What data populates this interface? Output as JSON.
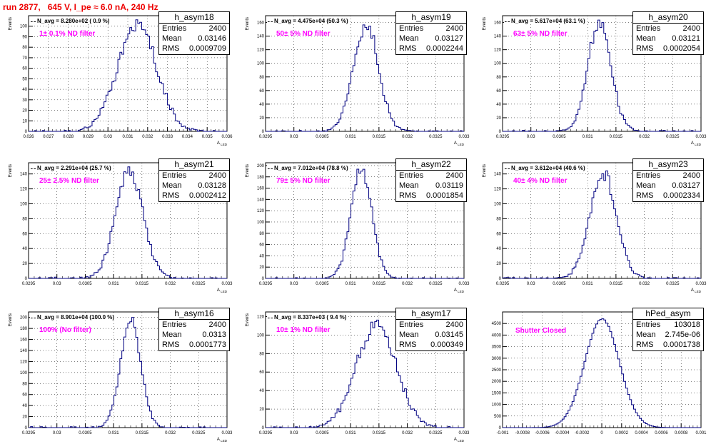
{
  "title": "run 2877,   645 V, I_pe ≈ 6.0 nA, 240 Hz",
  "colors": {
    "title": "#ee0000",
    "histogram": "#000080",
    "filter_label": "#ff00ff",
    "grid": "#000000"
  },
  "chart_data": [
    {
      "type": "histogram",
      "name": "h_asym18",
      "xlabel": "A_{LED}",
      "ylabel": "Events",
      "xlim": [
        0.026,
        0.036
      ],
      "ylim": [
        0,
        110
      ],
      "xticks": [
        "0.026",
        "0.027",
        "0.028",
        "0.029",
        "0.03",
        "0.031",
        "0.032",
        "0.033",
        "0.034",
        "0.035",
        "0.036"
      ],
      "yticks": [
        "0",
        "10",
        "20",
        "30",
        "40",
        "50",
        "60",
        "70",
        "80",
        "90",
        "100"
      ],
      "grid": true,
      "stats": {
        "title": "h_asym18",
        "rows": [
          {
            "label": "Entries",
            "value": "2400"
          },
          {
            "label": "Mean",
            "value": "0.03146"
          },
          {
            "label": "RMS",
            "value": "0.0009709"
          }
        ]
      },
      "n_avg": "N_avg = 8.280e+02 ( 0.9 %)",
      "filter": "1± 0.1% ND filter",
      "dist": {
        "mean": 0.03146,
        "rms": 0.0009709,
        "entries": 2400,
        "peak": 103
      }
    },
    {
      "type": "histogram",
      "name": "h_asym19",
      "xlabel": "A_{LED}",
      "ylabel": "Events",
      "xlim": [
        0.0295,
        0.033
      ],
      "ylim": [
        0,
        170
      ],
      "xticks": [
        "0.0295",
        "0.03",
        "0.0305",
        "0.031",
        "0.0315",
        "0.032",
        "0.0325",
        "0.033"
      ],
      "yticks": [
        "0",
        "20",
        "40",
        "60",
        "80",
        "100",
        "120",
        "140",
        "160"
      ],
      "grid": true,
      "stats": {
        "title": "h_asym19",
        "rows": [
          {
            "label": "Entries",
            "value": "2400"
          },
          {
            "label": "Mean",
            "value": "0.03127"
          },
          {
            "label": "RMS",
            "value": "0.0002244"
          }
        ]
      },
      "n_avg": "N_avg = 4.475e+04 (50.3 %)",
      "filter": "50± 5% ND filter",
      "dist": {
        "mean": 0.03127,
        "rms": 0.0002244,
        "entries": 2400,
        "peak": 157
      }
    },
    {
      "type": "histogram",
      "name": "h_asym20",
      "xlabel": "A_{LED}",
      "ylabel": "Events",
      "xlim": [
        0.0295,
        0.033
      ],
      "ylim": [
        0,
        170
      ],
      "xticks": [
        "0.0295",
        "0.03",
        "0.0305",
        "0.031",
        "0.0315",
        "0.032",
        "0.0325",
        "0.033"
      ],
      "yticks": [
        "0",
        "20",
        "40",
        "60",
        "80",
        "100",
        "120",
        "140",
        "160"
      ],
      "grid": true,
      "stats": {
        "title": "h_asym20",
        "rows": [
          {
            "label": "Entries",
            "value": "2400"
          },
          {
            "label": "Mean",
            "value": "0.03121"
          },
          {
            "label": "RMS",
            "value": "0.0002054"
          }
        ]
      },
      "n_avg": "N_avg = 5.617e+04 (63.1 %)",
      "filter": "63± 5% ND filter",
      "dist": {
        "mean": 0.03121,
        "rms": 0.0002054,
        "entries": 2400,
        "peak": 160
      }
    },
    {
      "type": "histogram",
      "name": "h_asym21",
      "xlabel": "A_{LED}",
      "ylabel": "Events",
      "xlim": [
        0.0295,
        0.033
      ],
      "ylim": [
        0,
        155
      ],
      "xticks": [
        "0.0295",
        "0.03",
        "0.0305",
        "0.031",
        "0.0315",
        "0.032",
        "0.0325",
        "0.033"
      ],
      "yticks": [
        "0",
        "20",
        "40",
        "60",
        "80",
        "100",
        "120",
        "140"
      ],
      "grid": true,
      "stats": {
        "title": "h_asym21",
        "rows": [
          {
            "label": "Entries",
            "value": "2400"
          },
          {
            "label": "Mean",
            "value": "0.03128"
          },
          {
            "label": "RMS",
            "value": "0.0002412"
          }
        ]
      },
      "n_avg": "N_avg = 2.291e+04 (25.7 %)",
      "filter": "25± 2.5% ND filter",
      "dist": {
        "mean": 0.03128,
        "rms": 0.0002412,
        "entries": 2400,
        "peak": 146
      }
    },
    {
      "type": "histogram",
      "name": "h_asym22",
      "xlabel": "A_{LED}",
      "ylabel": "Events",
      "xlim": [
        0.0295,
        0.033
      ],
      "ylim": [
        0,
        205
      ],
      "xticks": [
        "0.0295",
        "0.03",
        "0.0305",
        "0.031",
        "0.0315",
        "0.032",
        "0.0325",
        "0.033"
      ],
      "yticks": [
        "0",
        "20",
        "40",
        "60",
        "80",
        "100",
        "120",
        "140",
        "160",
        "180",
        "200"
      ],
      "grid": true,
      "stats": {
        "title": "h_asym22",
        "rows": [
          {
            "label": "Entries",
            "value": "2400"
          },
          {
            "label": "Mean",
            "value": "0.03119"
          },
          {
            "label": "RMS",
            "value": "0.0001854"
          }
        ]
      },
      "n_avg": "N_avg = 7.012e+04 (78.8 %)",
      "filter": "79± 5% ND filter",
      "dist": {
        "mean": 0.03119,
        "rms": 0.0001854,
        "entries": 2400,
        "peak": 196
      }
    },
    {
      "type": "histogram",
      "name": "h_asym23",
      "xlabel": "A_{LED}",
      "ylabel": "Events",
      "xlim": [
        0.0295,
        0.033
      ],
      "ylim": [
        0,
        155
      ],
      "xticks": [
        "0.0295",
        "0.03",
        "0.0305",
        "0.031",
        "0.0315",
        "0.032",
        "0.0325",
        "0.033"
      ],
      "yticks": [
        "0",
        "20",
        "40",
        "60",
        "80",
        "100",
        "120",
        "140"
      ],
      "grid": true,
      "stats": {
        "title": "h_asym23",
        "rows": [
          {
            "label": "Entries",
            "value": "2400"
          },
          {
            "label": "Mean",
            "value": "0.03127"
          },
          {
            "label": "RMS",
            "value": "0.0002334"
          }
        ]
      },
      "n_avg": "N_avg = 3.612e+04 (40.6 %)",
      "filter": "40± 4% ND filter",
      "dist": {
        "mean": 0.03127,
        "rms": 0.0002334,
        "entries": 2400,
        "peak": 141
      }
    },
    {
      "type": "histogram",
      "name": "h_asym16",
      "xlabel": "A_{LED}",
      "ylabel": "Events",
      "xlim": [
        0.0295,
        0.033
      ],
      "ylim": [
        0,
        210
      ],
      "xticks": [
        "0.0295",
        "0.03",
        "0.0305",
        "0.031",
        "0.0315",
        "0.032",
        "0.0325",
        "0.033"
      ],
      "yticks": [
        "0",
        "20",
        "40",
        "60",
        "80",
        "100",
        "120",
        "140",
        "160",
        "180",
        "200"
      ],
      "grid": true,
      "stats": {
        "title": "h_asym16",
        "rows": [
          {
            "label": "Entries",
            "value": "2400"
          },
          {
            "label": "Mean",
            "value": "0.0313"
          },
          {
            "label": "RMS",
            "value": "0.0001773"
          }
        ]
      },
      "n_avg": "N_avg = 8.901e+04 (100.0 %)",
      "filter": "100% (No filter)",
      "dist": {
        "mean": 0.0313,
        "rms": 0.0001773,
        "entries": 2400,
        "peak": 196
      }
    },
    {
      "type": "histogram",
      "name": "h_asym17",
      "xlabel": "A_{LED}",
      "ylabel": "Events",
      "xlim": [
        0.0295,
        0.033
      ],
      "ylim": [
        0,
        125
      ],
      "xticks": [
        "0.0295",
        "0.03",
        "0.0305",
        "0.031",
        "0.0315",
        "0.032",
        "0.0325",
        "0.033"
      ],
      "yticks": [
        "0",
        "20",
        "40",
        "60",
        "80",
        "100",
        "120"
      ],
      "grid": true,
      "stats": {
        "title": "h_asym17",
        "rows": [
          {
            "label": "Entries",
            "value": "2400"
          },
          {
            "label": "Mean",
            "value": "0.03145"
          },
          {
            "label": "RMS",
            "value": "0.000349"
          }
        ]
      },
      "n_avg": "N_avg = 8.337e+03 ( 9.4 %)",
      "filter": "10± 1% ND filter",
      "dist": {
        "mean": 0.03145,
        "rms": 0.000349,
        "entries": 2400,
        "peak": 112
      }
    },
    {
      "type": "histogram",
      "name": "hPed_asym",
      "xlabel": "",
      "ylabel": "",
      "xlim": [
        -0.001,
        0.001
      ],
      "ylim": [
        0,
        5000
      ],
      "xticks": [
        "-0.001",
        "-0.0008",
        "-0.0006",
        "-0.0004",
        "-0.0002",
        "0",
        "0.0002",
        "0.0004",
        "0.0006",
        "0.0008",
        "0.001"
      ],
      "yticks": [
        "0",
        "500",
        "1000",
        "1500",
        "2000",
        "2500",
        "3000",
        "3500",
        "4000",
        "4500"
      ],
      "grid": true,
      "stats": {
        "title": "hPed_asym",
        "rows": [
          {
            "label": "Entries",
            "value": "103018"
          },
          {
            "label": "Mean",
            "value": "2.745e-06"
          },
          {
            "label": "RMS",
            "value": "0.0001738"
          }
        ]
      },
      "n_avg": "",
      "filter": "Shutter Closed",
      "dist": {
        "mean": 2.745e-06,
        "rms": 0.0001738,
        "entries": 103018,
        "peak": 4700
      }
    }
  ]
}
